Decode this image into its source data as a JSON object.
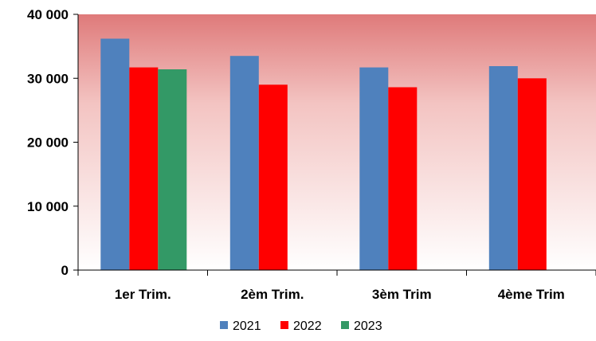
{
  "chart_data": {
    "type": "bar",
    "title": "",
    "xlabel": "",
    "ylabel": "",
    "categories": [
      "1er Trim.",
      "2èm Trim.",
      "3èm Trim",
      "4ème Trim"
    ],
    "series": [
      {
        "name": "2021",
        "color": "#4f81bd",
        "values": [
          36200,
          33500,
          31700,
          31900
        ]
      },
      {
        "name": "2022",
        "color": "#ff0000",
        "values": [
          31700,
          29000,
          28600,
          30000
        ]
      },
      {
        "name": "2023",
        "color": "#339966",
        "values": [
          31400,
          null,
          null,
          null
        ]
      }
    ],
    "yticks": [
      0,
      10000,
      20000,
      30000,
      40000
    ],
    "ytick_labels": [
      "0",
      "10 000",
      "20 000",
      "30 000",
      "40 000"
    ],
    "ylim": [
      0,
      40000
    ],
    "grid": false,
    "legend_position": "bottom",
    "background": "gradient red (top) to white (bottom)"
  }
}
